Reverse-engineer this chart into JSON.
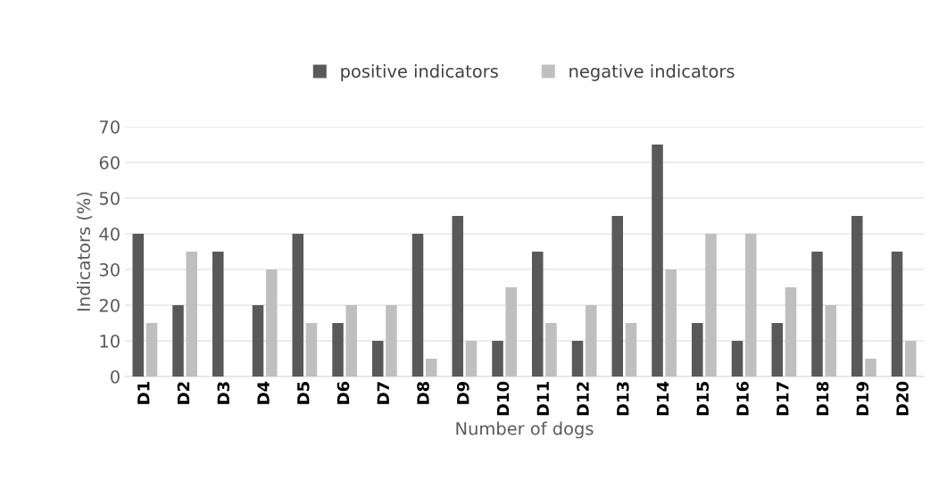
{
  "chart_data": {
    "type": "bar",
    "xlabel": "Number of dogs",
    "ylabel": "Indicators (%)",
    "categories": [
      "D1",
      "D2",
      "D3",
      "D4",
      "D5",
      "D6",
      "D7",
      "D8",
      "D9",
      "D10",
      "D11",
      "D12",
      "D13",
      "D14",
      "D15",
      "D16",
      "D17",
      "D18",
      "D19",
      "D20"
    ],
    "series": [
      {
        "name": "positive indicators",
        "color": "#595959",
        "values": [
          40,
          20,
          35,
          20,
          40,
          15,
          10,
          40,
          45,
          10,
          35,
          10,
          45,
          65,
          15,
          10,
          15,
          35,
          45,
          35
        ]
      },
      {
        "name": "negative indicators",
        "color": "#bfbfbf",
        "values": [
          15,
          35,
          0,
          30,
          15,
          20,
          20,
          5,
          10,
          25,
          15,
          20,
          15,
          30,
          40,
          40,
          25,
          20,
          5,
          10
        ]
      }
    ],
    "ylim": [
      0,
      70
    ],
    "yticks": [
      0,
      10,
      20,
      30,
      40,
      50,
      60,
      70
    ],
    "grid": "y",
    "legend": "top"
  }
}
